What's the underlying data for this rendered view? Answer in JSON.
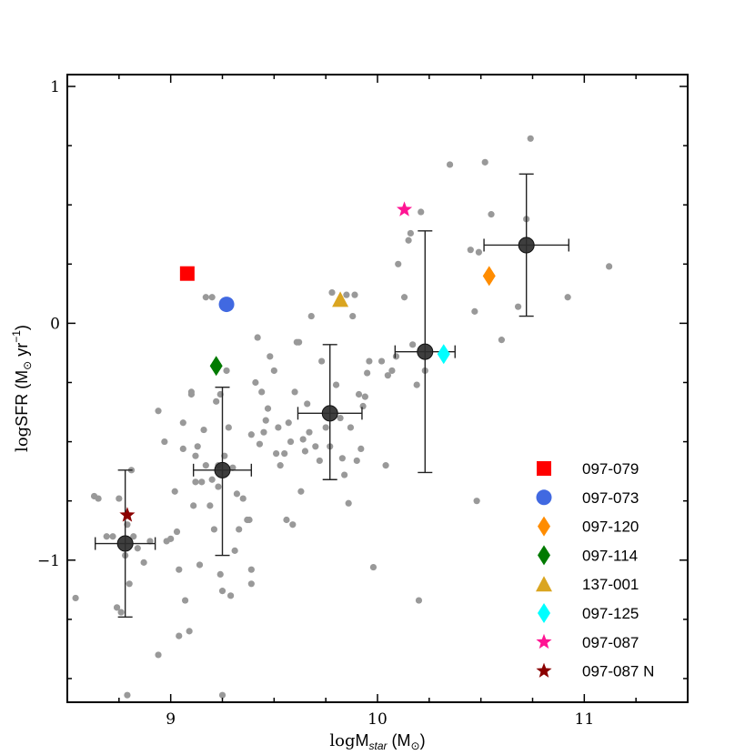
{
  "chart_data": {
    "type": "scatter",
    "title": "",
    "xlabel_parts": {
      "log": "log",
      "main": "M",
      "sub": "star",
      "unit": " (M",
      "unit_sub": "⊙",
      "close": ")"
    },
    "ylabel_parts": {
      "log": "log",
      "main": "SFR (M",
      "unit_sub": "⊙",
      "rest": " yr",
      "sup": "−1",
      "close": ")"
    },
    "xlim": [
      8.5,
      11.5
    ],
    "ylim": [
      -1.6,
      1.05
    ],
    "x_ticks": [
      9,
      10,
      11
    ],
    "x_tick_labels": [
      "9",
      "10",
      "11"
    ],
    "y_ticks": [
      -1,
      0,
      1
    ],
    "y_tick_labels": [
      "−1",
      "0",
      "1"
    ],
    "grid": false,
    "legend_position": "bottom-right",
    "background_color": "#999999",
    "background_points": [
      [
        8.54,
        -1.16
      ],
      [
        8.63,
        -0.73
      ],
      [
        8.65,
        -0.74
      ],
      [
        8.69,
        -0.9
      ],
      [
        8.72,
        -0.9
      ],
      [
        8.74,
        -1.2
      ],
      [
        8.75,
        -0.74
      ],
      [
        8.76,
        -1.22
      ],
      [
        8.78,
        -0.98
      ],
      [
        8.79,
        -0.85
      ],
      [
        8.8,
        -1.1
      ],
      [
        8.81,
        -0.62
      ],
      [
        8.82,
        -0.9
      ],
      [
        8.84,
        -0.95
      ],
      [
        8.79,
        -1.57
      ],
      [
        8.87,
        -1.01
      ],
      [
        8.9,
        -0.92
      ],
      [
        8.94,
        -1.4
      ],
      [
        8.94,
        -0.37
      ],
      [
        8.97,
        -0.5
      ],
      [
        8.98,
        -0.92
      ],
      [
        9.0,
        -0.91
      ],
      [
        9.02,
        -0.71
      ],
      [
        9.03,
        -0.88
      ],
      [
        9.04,
        -1.04
      ],
      [
        9.04,
        -1.32
      ],
      [
        9.06,
        -0.42
      ],
      [
        9.06,
        -0.53
      ],
      [
        9.07,
        -1.17
      ],
      [
        9.09,
        -1.3
      ],
      [
        9.1,
        -0.29
      ],
      [
        9.1,
        -0.3
      ],
      [
        9.11,
        -0.77
      ],
      [
        9.12,
        -0.67
      ],
      [
        9.12,
        -0.56
      ],
      [
        9.13,
        -0.52
      ],
      [
        9.14,
        -1.02
      ],
      [
        9.15,
        -0.67
      ],
      [
        9.16,
        -0.45
      ],
      [
        9.17,
        -0.6
      ],
      [
        9.17,
        0.11
      ],
      [
        9.19,
        -0.77
      ],
      [
        9.2,
        0.11
      ],
      [
        9.2,
        -0.66
      ],
      [
        9.21,
        -0.87
      ],
      [
        9.22,
        -0.33
      ],
      [
        9.23,
        -0.69
      ],
      [
        9.23,
        -0.6
      ],
      [
        9.24,
        -0.3
      ],
      [
        9.24,
        -1.06
      ],
      [
        9.25,
        -1.13
      ],
      [
        9.25,
        -1.57
      ],
      [
        9.26,
        -0.56
      ],
      [
        9.27,
        -0.2
      ],
      [
        9.28,
        -0.44
      ],
      [
        9.29,
        -1.15
      ],
      [
        9.3,
        -0.61
      ],
      [
        9.31,
        -0.96
      ],
      [
        9.32,
        -0.72
      ],
      [
        9.33,
        -0.87
      ],
      [
        9.35,
        -0.74
      ],
      [
        9.37,
        -0.83
      ],
      [
        9.38,
        -0.83
      ],
      [
        9.39,
        -0.47
      ],
      [
        9.39,
        -1.04
      ],
      [
        9.39,
        -1.1
      ],
      [
        9.41,
        -0.25
      ],
      [
        9.42,
        -0.06
      ],
      [
        9.43,
        -0.51
      ],
      [
        9.44,
        -0.29
      ],
      [
        9.45,
        -0.46
      ],
      [
        9.46,
        -0.41
      ],
      [
        9.47,
        -0.36
      ],
      [
        9.48,
        -0.14
      ],
      [
        9.5,
        -0.2
      ],
      [
        9.51,
        -0.55
      ],
      [
        9.52,
        -0.44
      ],
      [
        9.53,
        -0.6
      ],
      [
        9.55,
        -0.55
      ],
      [
        9.56,
        -0.83
      ],
      [
        9.57,
        -0.42
      ],
      [
        9.58,
        -0.5
      ],
      [
        9.59,
        -0.85
      ],
      [
        9.6,
        -0.29
      ],
      [
        9.61,
        -0.08
      ],
      [
        9.62,
        -0.08
      ],
      [
        9.63,
        -0.71
      ],
      [
        9.64,
        -0.49
      ],
      [
        9.65,
        -0.54
      ],
      [
        9.66,
        -0.34
      ],
      [
        9.67,
        -0.46
      ],
      [
        9.68,
        0.03
      ],
      [
        9.7,
        -0.52
      ],
      [
        9.72,
        -0.58
      ],
      [
        9.73,
        -0.16
      ],
      [
        9.75,
        -0.44
      ],
      [
        9.77,
        -0.52
      ],
      [
        9.78,
        0.13
      ],
      [
        9.8,
        -0.26
      ],
      [
        9.82,
        -0.4
      ],
      [
        9.83,
        -0.57
      ],
      [
        9.84,
        -0.64
      ],
      [
        9.85,
        0.12
      ],
      [
        9.86,
        -0.76
      ],
      [
        9.87,
        -0.44
      ],
      [
        9.88,
        0.03
      ],
      [
        9.89,
        0.12
      ],
      [
        9.9,
        -0.58
      ],
      [
        9.91,
        -0.3
      ],
      [
        9.92,
        -0.53
      ],
      [
        9.93,
        -0.35
      ],
      [
        9.94,
        -0.31
      ],
      [
        9.95,
        -0.21
      ],
      [
        9.96,
        -0.16
      ],
      [
        9.98,
        -1.03
      ],
      [
        10.02,
        -0.16
      ],
      [
        10.04,
        -0.6
      ],
      [
        10.05,
        -0.22
      ],
      [
        10.07,
        -0.2
      ],
      [
        10.09,
        -0.14
      ],
      [
        10.1,
        0.25
      ],
      [
        10.13,
        0.11
      ],
      [
        10.15,
        0.35
      ],
      [
        10.16,
        0.38
      ],
      [
        10.17,
        -0.09
      ],
      [
        10.19,
        -0.26
      ],
      [
        10.2,
        -1.17
      ],
      [
        10.21,
        0.47
      ],
      [
        10.23,
        -0.2
      ],
      [
        10.35,
        0.67
      ],
      [
        10.45,
        0.31
      ],
      [
        10.47,
        0.05
      ],
      [
        10.48,
        -0.75
      ],
      [
        10.49,
        0.3
      ],
      [
        10.52,
        0.68
      ],
      [
        10.55,
        0.46
      ],
      [
        10.6,
        -0.07
      ],
      [
        10.68,
        0.07
      ],
      [
        10.72,
        0.44
      ],
      [
        10.74,
        0.78
      ],
      [
        10.92,
        0.11
      ],
      [
        11.12,
        0.24
      ]
    ],
    "binned_means": [
      {
        "x": 8.78,
        "y": -0.93,
        "xerr": 0.145,
        "yerr_low": 0.31,
        "yerr_high": 0.31
      },
      {
        "x": 9.25,
        "y": -0.62,
        "xerr": 0.14,
        "yerr_low": 0.36,
        "yerr_high": 0.35
      },
      {
        "x": 9.77,
        "y": -0.38,
        "xerr": 0.155,
        "yerr_low": 0.28,
        "yerr_high": 0.29
      },
      {
        "x": 10.23,
        "y": -0.12,
        "xerr": 0.145,
        "yerr_low": 0.51,
        "yerr_high": 0.51
      },
      {
        "x": 10.72,
        "y": 0.33,
        "xerr": 0.205,
        "yerr_low": 0.3,
        "yerr_high": 0.3
      }
    ],
    "binned_color": "#2e2e2e",
    "series": [
      {
        "name": "097-079",
        "marker": "square",
        "color": "#ff0000",
        "x": 9.08,
        "y": 0.21
      },
      {
        "name": "097-073",
        "marker": "circle",
        "color": "#4169e1",
        "x": 9.27,
        "y": 0.08
      },
      {
        "name": "097-120",
        "marker": "diamond",
        "color": "#ff8c00",
        "x": 10.54,
        "y": 0.2
      },
      {
        "name": "097-114",
        "marker": "diamond",
        "color": "#007a00",
        "x": 9.22,
        "y": -0.18
      },
      {
        "name": "137-001",
        "marker": "triangle",
        "color": "#daa520",
        "x": 9.82,
        "y": 0.1
      },
      {
        "name": "097-125",
        "marker": "diamond",
        "color": "#00ffff",
        "x": 10.32,
        "y": -0.13
      },
      {
        "name": "097-087",
        "marker": "star",
        "color": "#ff1493",
        "x": 10.13,
        "y": 0.48
      },
      {
        "name": "097-087 N",
        "marker": "star",
        "color": "#8b0000",
        "x": 8.79,
        "y": -0.81
      }
    ]
  }
}
